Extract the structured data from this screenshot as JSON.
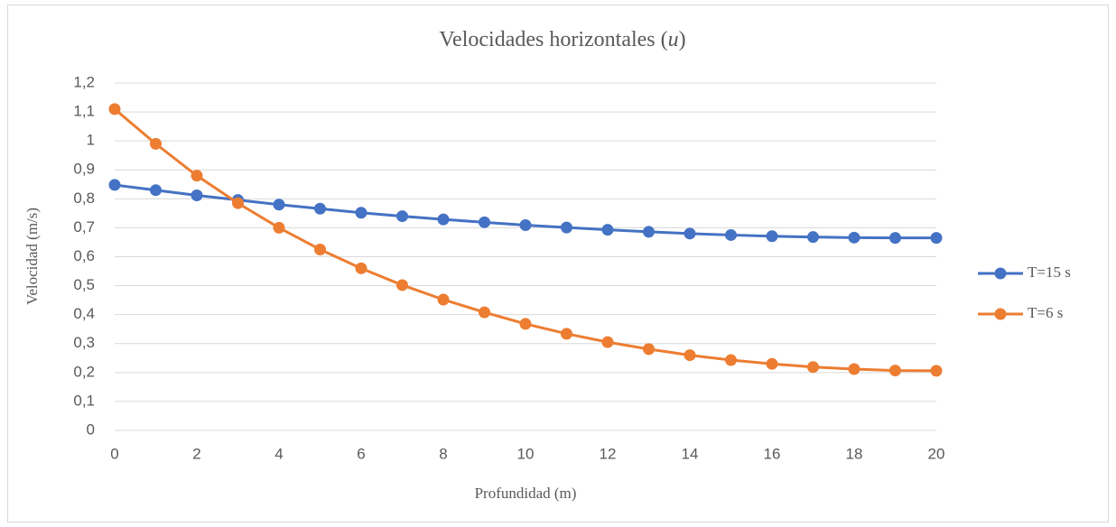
{
  "chart_data": {
    "type": "line",
    "title": [
      "Velocidades horizontales (",
      "u",
      ")"
    ],
    "x_label": "Profundidad (m)",
    "y_label": "Velocidad (m/s)",
    "x": [
      0,
      1,
      2,
      3,
      4,
      5,
      6,
      7,
      8,
      9,
      10,
      11,
      12,
      13,
      14,
      15,
      16,
      17,
      18,
      19,
      20
    ],
    "series": [
      {
        "name": "T=15 s",
        "color": "#4472c4",
        "values": [
          0.848,
          0.83,
          0.812,
          0.796,
          0.78,
          0.766,
          0.752,
          0.74,
          0.729,
          0.719,
          0.709,
          0.701,
          0.693,
          0.686,
          0.68,
          0.675,
          0.671,
          0.668,
          0.666,
          0.665,
          0.665
        ]
      },
      {
        "name": "T=6 s",
        "color": "#ed7d31",
        "values": [
          1.11,
          0.99,
          0.88,
          0.785,
          0.7,
          0.625,
          0.56,
          0.502,
          0.452,
          0.408,
          0.368,
          0.334,
          0.305,
          0.281,
          0.26,
          0.243,
          0.23,
          0.219,
          0.212,
          0.207,
          0.206
        ]
      }
    ],
    "xlim": [
      0,
      20
    ],
    "xticks": [
      0,
      2,
      4,
      6,
      8,
      10,
      12,
      14,
      16,
      18,
      20
    ],
    "ylim": [
      0,
      1.2
    ],
    "yticks": [
      0,
      {
        "value": 0.1,
        "label": "0,1"
      },
      {
        "value": 0.2,
        "label": "0,2"
      },
      {
        "value": 0.3,
        "label": "0,3"
      },
      {
        "value": 0.4,
        "label": "0,4"
      },
      {
        "value": 0.5,
        "label": "0,5"
      },
      {
        "value": 0.6,
        "label": "0,6"
      },
      {
        "value": 0.7,
        "label": "0,7"
      },
      {
        "value": 0.8,
        "label": "0,8"
      },
      {
        "value": 0.9,
        "label": "0,9"
      },
      1,
      {
        "value": 1.1,
        "label": "1,1"
      },
      {
        "value": 1.2,
        "label": "1,2"
      }
    ],
    "grid": true,
    "legend": "right"
  }
}
